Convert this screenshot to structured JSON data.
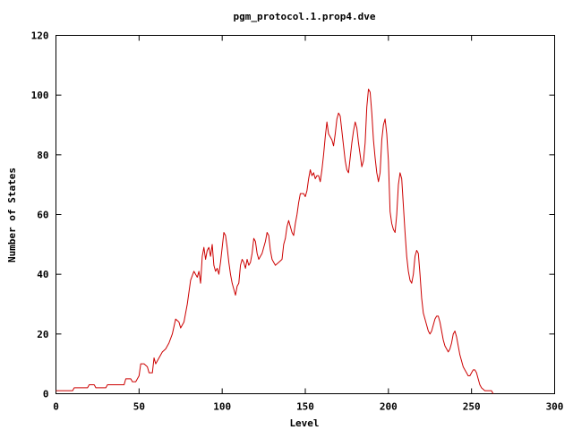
{
  "chart_data": {
    "type": "line",
    "title": "pgm_protocol.1.prop4.dve",
    "xlabel": "Level",
    "ylabel": "Number of States",
    "xlim": [
      0,
      300
    ],
    "ylim": [
      0,
      120
    ],
    "xticks": [
      0,
      50,
      100,
      150,
      200,
      250,
      300
    ],
    "yticks": [
      0,
      20,
      40,
      60,
      80,
      100,
      120
    ],
    "grid": false,
    "colors": {
      "series": "#cc0000",
      "axis": "#000000"
    },
    "series": [
      {
        "values": [
          [
            0,
            1
          ],
          [
            10,
            1
          ],
          [
            11,
            2
          ],
          [
            19,
            2
          ],
          [
            20,
            3
          ],
          [
            23,
            3
          ],
          [
            24,
            2
          ],
          [
            30,
            2
          ],
          [
            31,
            3
          ],
          [
            41,
            3
          ],
          [
            42,
            5
          ],
          [
            45,
            5
          ],
          [
            46,
            4
          ],
          [
            48,
            4
          ],
          [
            50,
            6
          ],
          [
            51,
            10
          ],
          [
            53,
            10
          ],
          [
            55,
            9
          ],
          [
            56,
            7
          ],
          [
            58,
            7
          ],
          [
            59,
            12
          ],
          [
            60,
            10
          ],
          [
            62,
            12
          ],
          [
            64,
            14
          ],
          [
            66,
            15
          ],
          [
            68,
            17
          ],
          [
            70,
            20
          ],
          [
            72,
            25
          ],
          [
            74,
            24
          ],
          [
            75,
            22
          ],
          [
            77,
            24
          ],
          [
            79,
            30
          ],
          [
            81,
            38
          ],
          [
            83,
            41
          ],
          [
            85,
            39
          ],
          [
            86,
            41
          ],
          [
            87,
            37
          ],
          [
            88,
            46
          ],
          [
            89,
            49
          ],
          [
            90,
            45
          ],
          [
            91,
            48
          ],
          [
            92,
            49
          ],
          [
            93,
            46
          ],
          [
            94,
            50
          ],
          [
            95,
            43
          ],
          [
            96,
            41
          ],
          [
            97,
            42
          ],
          [
            98,
            40
          ],
          [
            99,
            44
          ],
          [
            100,
            49
          ],
          [
            101,
            54
          ],
          [
            102,
            53
          ],
          [
            103,
            49
          ],
          [
            104,
            44
          ],
          [
            105,
            40
          ],
          [
            106,
            37
          ],
          [
            107,
            35
          ],
          [
            108,
            33
          ],
          [
            109,
            36
          ],
          [
            110,
            37
          ],
          [
            111,
            43
          ],
          [
            112,
            45
          ],
          [
            113,
            44
          ],
          [
            114,
            42
          ],
          [
            115,
            45
          ],
          [
            116,
            43
          ],
          [
            117,
            44
          ],
          [
            118,
            47
          ],
          [
            119,
            52
          ],
          [
            120,
            51
          ],
          [
            121,
            47
          ],
          [
            122,
            45
          ],
          [
            123,
            46
          ],
          [
            124,
            47
          ],
          [
            125,
            49
          ],
          [
            126,
            51
          ],
          [
            127,
            54
          ],
          [
            128,
            53
          ],
          [
            129,
            48
          ],
          [
            130,
            45
          ],
          [
            131,
            44
          ],
          [
            132,
            43
          ],
          [
            134,
            44
          ],
          [
            136,
            45
          ],
          [
            137,
            50
          ],
          [
            138,
            52
          ],
          [
            139,
            56
          ],
          [
            140,
            58
          ],
          [
            141,
            56
          ],
          [
            142,
            54
          ],
          [
            143,
            53
          ],
          [
            144,
            57
          ],
          [
            145,
            60
          ],
          [
            146,
            64
          ],
          [
            147,
            67
          ],
          [
            149,
            67
          ],
          [
            150,
            66
          ],
          [
            151,
            68
          ],
          [
            152,
            72
          ],
          [
            153,
            75
          ],
          [
            154,
            73
          ],
          [
            155,
            74
          ],
          [
            156,
            72
          ],
          [
            157,
            73
          ],
          [
            158,
            73
          ],
          [
            159,
            71
          ],
          [
            160,
            75
          ],
          [
            161,
            80
          ],
          [
            162,
            86
          ],
          [
            163,
            91
          ],
          [
            164,
            87
          ],
          [
            165,
            86
          ],
          [
            166,
            85
          ],
          [
            167,
            83
          ],
          [
            168,
            87
          ],
          [
            169,
            92
          ],
          [
            170,
            94
          ],
          [
            171,
            93
          ],
          [
            172,
            88
          ],
          [
            173,
            83
          ],
          [
            174,
            78
          ],
          [
            175,
            75
          ],
          [
            176,
            74
          ],
          [
            177,
            79
          ],
          [
            178,
            84
          ],
          [
            179,
            88
          ],
          [
            180,
            91
          ],
          [
            181,
            89
          ],
          [
            182,
            84
          ],
          [
            183,
            80
          ],
          [
            184,
            76
          ],
          [
            185,
            78
          ],
          [
            186,
            84
          ],
          [
            187,
            96
          ],
          [
            188,
            102
          ],
          [
            189,
            101
          ],
          [
            190,
            94
          ],
          [
            191,
            85
          ],
          [
            192,
            79
          ],
          [
            193,
            74
          ],
          [
            194,
            71
          ],
          [
            195,
            74
          ],
          [
            196,
            85
          ],
          [
            197,
            90
          ],
          [
            198,
            92
          ],
          [
            199,
            87
          ],
          [
            200,
            78
          ],
          [
            201,
            61
          ],
          [
            202,
            57
          ],
          [
            203,
            55
          ],
          [
            204,
            54
          ],
          [
            205,
            60
          ],
          [
            206,
            70
          ],
          [
            207,
            74
          ],
          [
            208,
            72
          ],
          [
            209,
            63
          ],
          [
            210,
            54
          ],
          [
            211,
            46
          ],
          [
            212,
            41
          ],
          [
            213,
            38
          ],
          [
            214,
            37
          ],
          [
            215,
            40
          ],
          [
            216,
            46
          ],
          [
            217,
            48
          ],
          [
            218,
            47
          ],
          [
            219,
            40
          ],
          [
            220,
            32
          ],
          [
            221,
            27
          ],
          [
            222,
            25
          ],
          [
            223,
            23
          ],
          [
            224,
            21
          ],
          [
            225,
            20
          ],
          [
            226,
            21
          ],
          [
            227,
            23
          ],
          [
            228,
            25
          ],
          [
            229,
            26
          ],
          [
            230,
            26
          ],
          [
            231,
            24
          ],
          [
            232,
            21
          ],
          [
            233,
            18
          ],
          [
            234,
            16
          ],
          [
            235,
            15
          ],
          [
            236,
            14
          ],
          [
            237,
            15
          ],
          [
            238,
            17
          ],
          [
            239,
            20
          ],
          [
            240,
            21
          ],
          [
            241,
            19
          ],
          [
            242,
            16
          ],
          [
            243,
            13
          ],
          [
            244,
            11
          ],
          [
            245,
            9
          ],
          [
            246,
            8
          ],
          [
            247,
            7
          ],
          [
            248,
            6
          ],
          [
            249,
            6
          ],
          [
            250,
            7
          ],
          [
            251,
            8
          ],
          [
            252,
            8
          ],
          [
            253,
            7
          ],
          [
            254,
            5
          ],
          [
            255,
            3
          ],
          [
            256,
            2
          ],
          [
            258,
            1
          ],
          [
            262,
            1
          ],
          [
            263,
            0
          ]
        ]
      }
    ]
  }
}
